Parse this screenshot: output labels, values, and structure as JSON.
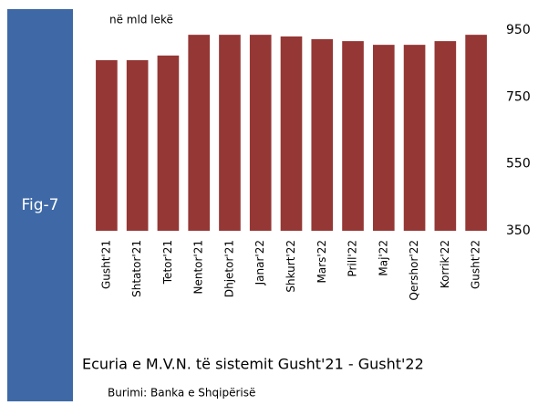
{
  "chart_data": {
    "type": "bar",
    "figure_label": "Fig-7",
    "unit_label": "në mld lekë",
    "title": "Ecuria e M.V.N. të sistemit Gusht'21 - Gusht'22",
    "source": "Burimi: Banka e Shqipërisë",
    "categories": [
      "Gusht'21",
      "Shtator'21",
      "Tetor'21",
      "Nentor'21",
      "Dhjetor'21",
      "Janar'22",
      "Shkurt'22",
      "Mars'22",
      "Prill'22",
      "Maj'22",
      "Qershor'22",
      "Korrik'22",
      "Gusht'22"
    ],
    "values": [
      860,
      860,
      874,
      936,
      936,
      936,
      931,
      923,
      917,
      906,
      906,
      917,
      936
    ],
    "color": "#953735",
    "ylim": [
      350,
      950
    ],
    "yticks": [
      350,
      550,
      750,
      950
    ],
    "grid": false
  }
}
